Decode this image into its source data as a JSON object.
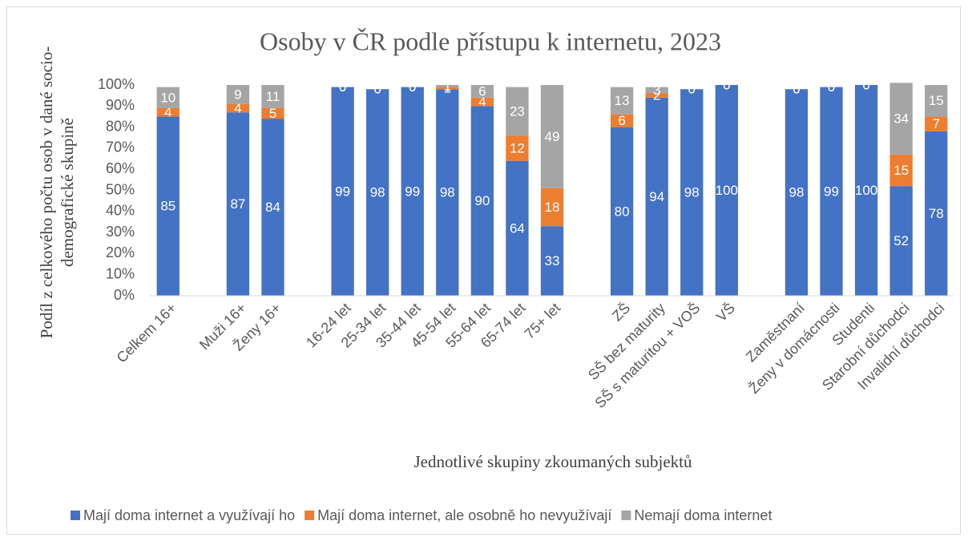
{
  "chart_data": {
    "type": "stacked_bar",
    "title": "Osoby v ČR podle přístupu k internetu, 2023",
    "xlabel": "Jednotlivé skupiny zkoumaných subjektů",
    "ylabel": [
      "Podíl z celkového počtu osob v dané socio-",
      "demografické skupině"
    ],
    "categories": [
      "Celkem 16+",
      null,
      "Muži 16+",
      "Ženy 16+",
      null,
      "16-24 let",
      "25-34 let",
      "35-44 let",
      "45-54 let",
      "55-64 let",
      "65-74 let",
      "75+ let",
      null,
      "ZŠ",
      "SŠ bez maturity",
      "SŠ s maturitou + VOŠ",
      "VŠ",
      null,
      "Zaměstnaní",
      "Ženy v domácnosti",
      "Studenti",
      "Starobní důchodci",
      "Invalidní důchodci"
    ],
    "series": [
      {
        "name": "Mají doma internet a využívají ho",
        "color": "#4472c4",
        "values": [
          85,
          null,
          87,
          84,
          null,
          99,
          98,
          99,
          98,
          90,
          64,
          33,
          null,
          80,
          94,
          98,
          100,
          null,
          98,
          99,
          100,
          52,
          78
        ]
      },
      {
        "name": "Mají doma internet, ale osobně ho nevyužívají",
        "color": "#ed7d31",
        "values": [
          4,
          null,
          4,
          5,
          null,
          0,
          0,
          0,
          1,
          4,
          12,
          18,
          null,
          6,
          2,
          0,
          0,
          null,
          0,
          0,
          0,
          15,
          7
        ]
      },
      {
        "name": "Nemají doma internet",
        "color": "#a5a5a5",
        "values": [
          10,
          null,
          9,
          11,
          null,
          0,
          0,
          0,
          1,
          6,
          23,
          49,
          null,
          13,
          3,
          0,
          0,
          null,
          0,
          0,
          0,
          34,
          15
        ]
      }
    ],
    "ylim": [
      0,
      100
    ],
    "yticks": [
      {
        "value": 0,
        "label": "0%"
      },
      {
        "value": 10,
        "label": "10%"
      },
      {
        "value": 20,
        "label": "20%"
      },
      {
        "value": 30,
        "label": "30%"
      },
      {
        "value": 40,
        "label": "40%"
      },
      {
        "value": 50,
        "label": "50%"
      },
      {
        "value": 60,
        "label": "60%"
      },
      {
        "value": 70,
        "label": "70%"
      },
      {
        "value": 80,
        "label": "80%"
      },
      {
        "value": 90,
        "label": "90%"
      },
      {
        "value": 100,
        "label": "100%"
      }
    ],
    "legend": "bottom"
  }
}
